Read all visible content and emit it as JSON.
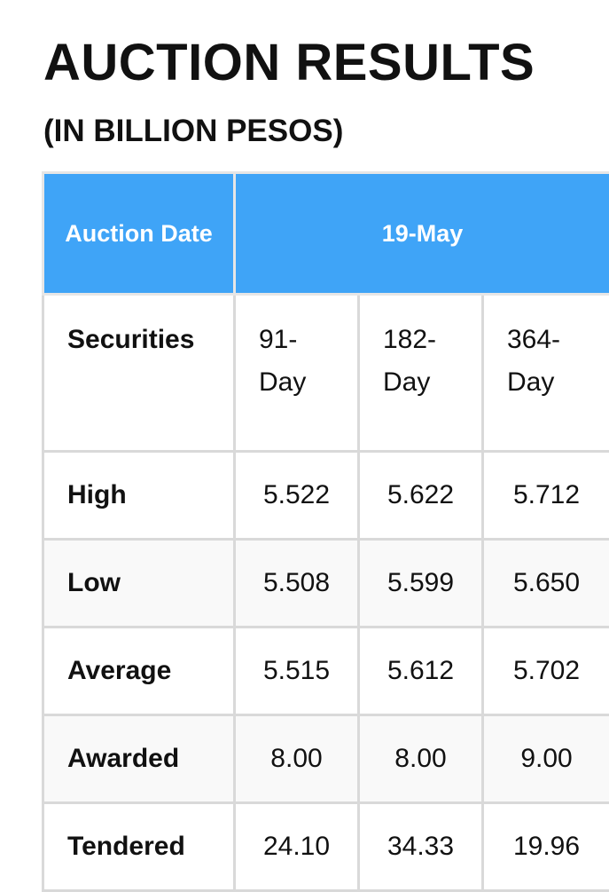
{
  "header": {
    "title": "AUCTION RESULTS",
    "subtitle": "(IN BILLION PESOS)"
  },
  "colors": {
    "header_bg": "#3fa4f7",
    "header_text": "#ffffff",
    "border": "#d9d9d9"
  },
  "table": {
    "header": {
      "label": "Auction Date",
      "date": "19-May"
    },
    "securities": {
      "label": "Securities",
      "items": [
        "91-Day",
        "182-Day",
        "364-Day"
      ]
    },
    "rows": [
      {
        "label": "High",
        "values": [
          "5.522",
          "5.622",
          "5.712"
        ]
      },
      {
        "label": "Low",
        "values": [
          "5.508",
          "5.599",
          "5.650"
        ]
      },
      {
        "label": "Average",
        "values": [
          "5.515",
          "5.612",
          "5.702"
        ]
      },
      {
        "label": "Awarded",
        "values": [
          "8.00",
          "8.00",
          "9.00"
        ]
      },
      {
        "label": "Tendered",
        "values": [
          "24.10",
          "34.33",
          "19.96"
        ]
      }
    ]
  }
}
